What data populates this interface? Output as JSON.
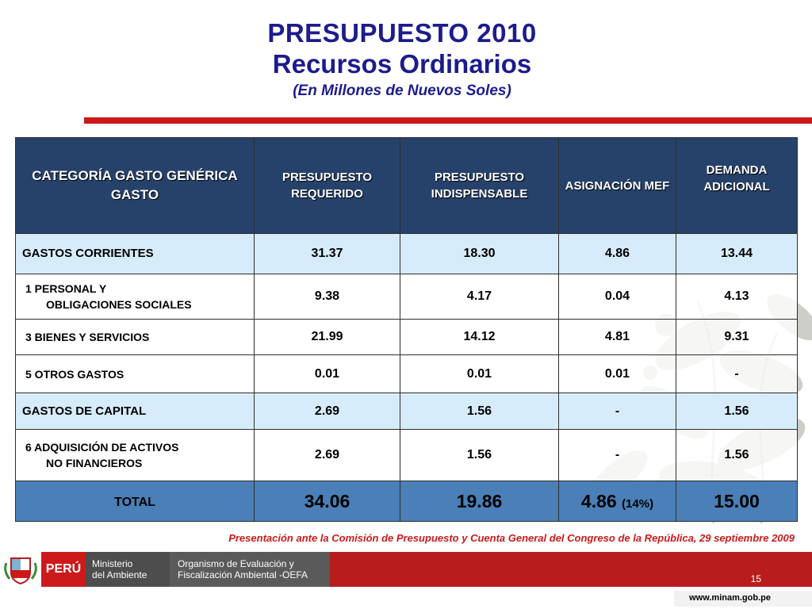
{
  "header": {
    "title": "PRESUPUESTO 2010",
    "subtitle": "Recursos Ordinarios",
    "units": "(En Millones de Nuevos Soles)"
  },
  "table": {
    "columns": [
      "CATEGORÍA GASTO GENÉRICA GASTO",
      "PRESUPUESTO REQUERIDO",
      "PRESUPUESTO INDISPENSABLE",
      "ASIGNACIÓN MEF",
      "DEMANDA ADICIONAL"
    ],
    "rows": [
      {
        "label": "GASTOS CORRIENTES",
        "label2": "",
        "values": [
          "31.37",
          "18.30",
          "4.86",
          "13.44"
        ]
      },
      {
        "label": "1  PERSONAL Y",
        "label2": "OBLIGACIONES SOCIALES",
        "values": [
          "9.38",
          "4.17",
          "0.04",
          "4.13"
        ]
      },
      {
        "label": "3  BIENES Y SERVICIOS",
        "label2": "",
        "values": [
          "21.99",
          "14.12",
          "4.81",
          "9.31"
        ]
      },
      {
        "label": "5  OTROS GASTOS",
        "label2": "",
        "values": [
          "0.01",
          "0.01",
          "0.01",
          "-"
        ]
      },
      {
        "label": "GASTOS DE CAPITAL",
        "label2": "",
        "values": [
          "2.69",
          "1.56",
          "-",
          "1.56"
        ]
      },
      {
        "label": "6 ADQUISICIÓN DE ACTIVOS",
        "label2": "NO FINANCIEROS",
        "values": [
          "2.69",
          "1.56",
          "-",
          "1.56"
        ]
      }
    ],
    "total": {
      "label": "TOTAL",
      "values": [
        "34.06",
        "19.86",
        "4.86",
        "15.00"
      ],
      "mef_pct": "(14%)"
    }
  },
  "caption": "Presentación ante la Comisión de Presupuesto y Cuenta General del Congreso de la República, 29 septiembre 2009",
  "footer": {
    "country": "PERÚ",
    "ministry_line1": "Ministerio",
    "ministry_line2": "del Ambiente",
    "org_line1": "Organismo de Evaluación y",
    "org_line2": "Fiscalización Ambiental -OEFA",
    "page_number": "15",
    "url": "www.minam.gob.pe"
  },
  "colors": {
    "title": "#1c1c8c",
    "header_bg": "#26426b",
    "group_row_bg": "#d7ecfa",
    "total_row_bg": "#4a7fb8",
    "accent_red": "#cc1a1a"
  }
}
